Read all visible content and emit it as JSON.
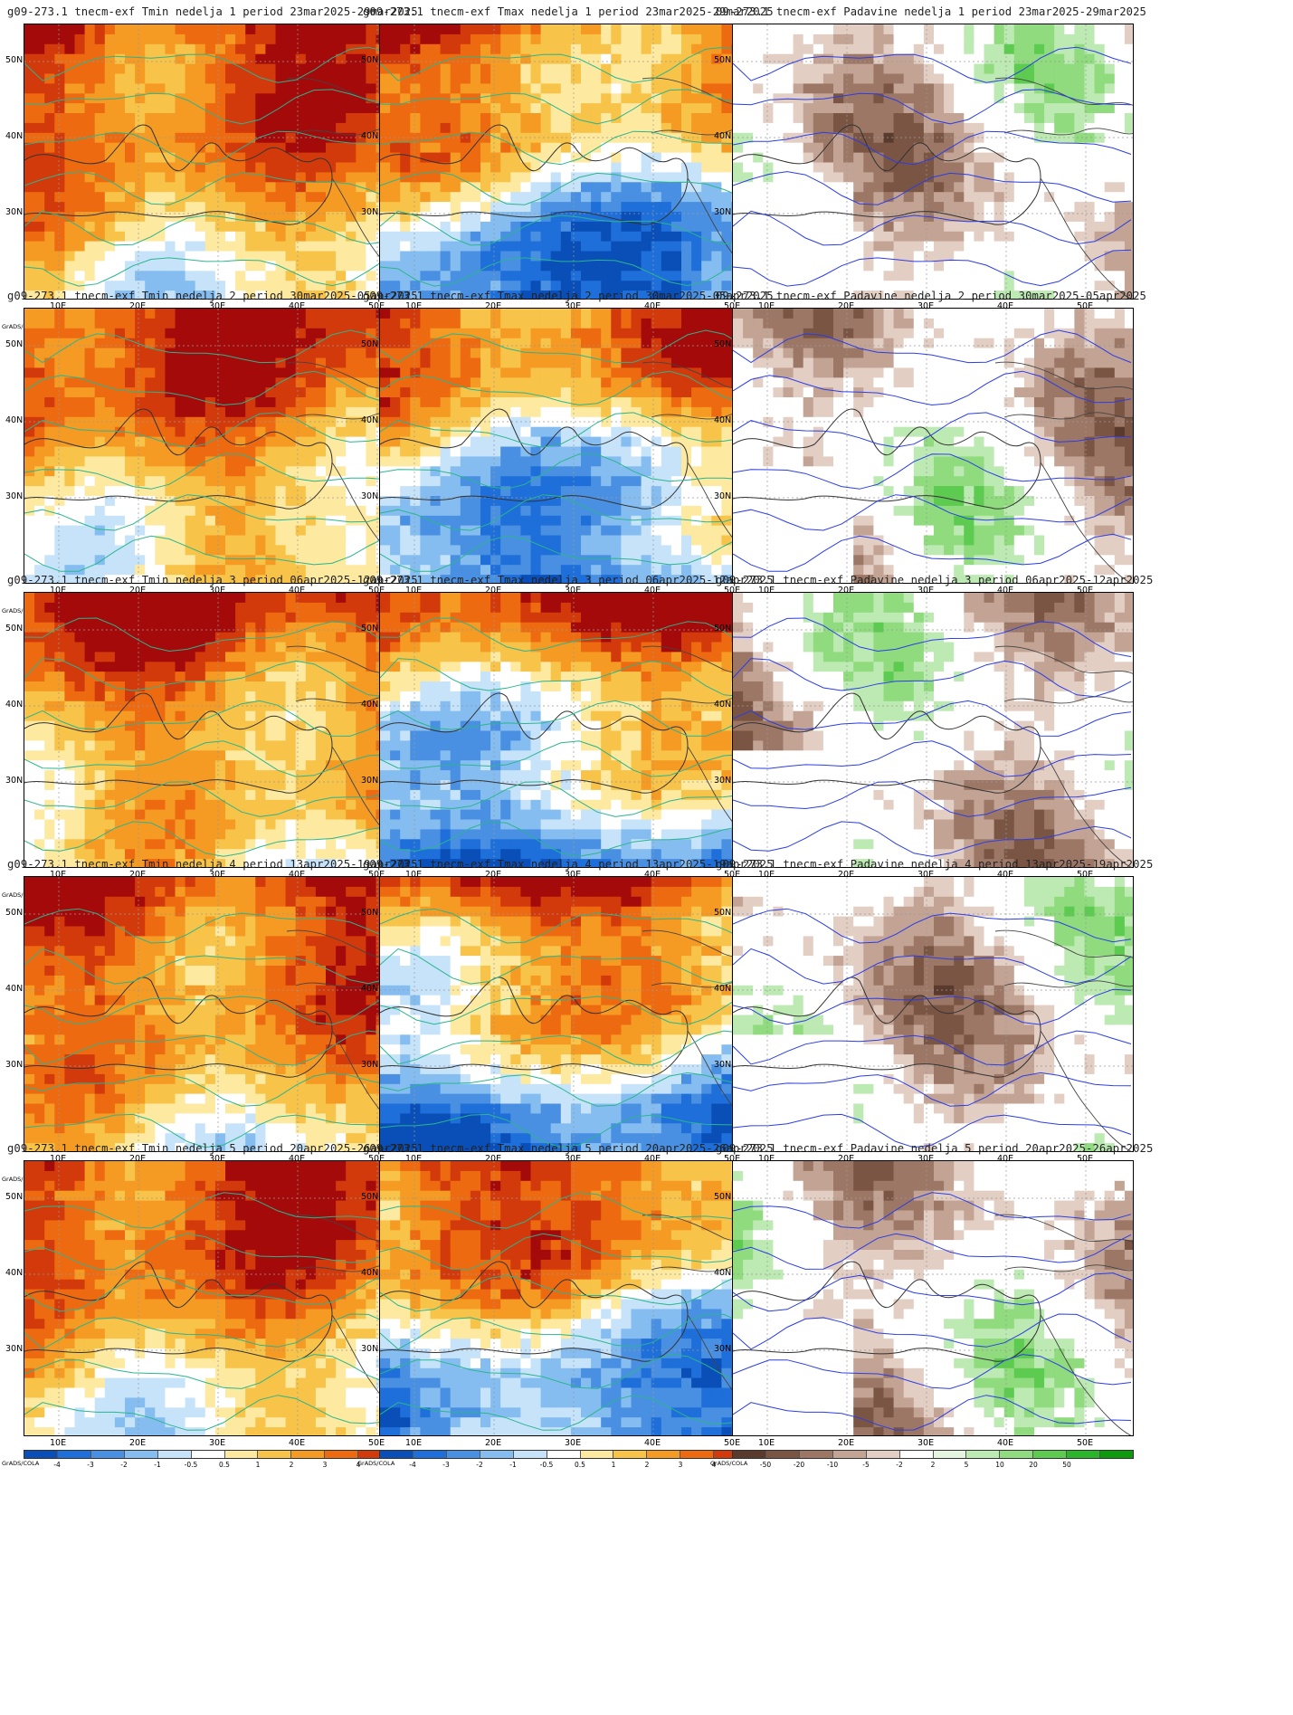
{
  "panels": [
    {
      "title": "g09-273.1  tnecm-exf  Tmin  nedelja  1  period  23mar2025-29mar2025",
      "var": "tmin",
      "week": 1
    },
    {
      "title": "g09-273.1  tnecm-exf  Tmax  nedelja  1  period  23mar2025-29mar2025",
      "var": "tmax",
      "week": 1
    },
    {
      "title": "09-273.1  tnecm-exf  Padavine  nedelja  1  period  23mar2025-29mar2025",
      "var": "prec",
      "week": 1
    },
    {
      "title": "g09-273.1  tnecm-exf  Tmin  nedelja  2  period  30mar2025-05apr2025",
      "var": "tmin",
      "week": 2
    },
    {
      "title": "g09-273.1  tnecm-exf  Tmax  nedelja  2  period  30mar2025-05apr2025",
      "var": "tmax",
      "week": 2
    },
    {
      "title": "09-273.1  tnecm-exf  Padavine  nedelja  2  period  30mar2025-05apr2025",
      "var": "prec",
      "week": 2
    },
    {
      "title": "g09-273.1  tnecm-exf  Tmin  nedelja  3  period  06apr2025-12apr2025",
      "var": "tmin",
      "week": 3
    },
    {
      "title": "g09-273.1  tnecm-exf  Tmax  nedelja  3  period  06apr2025-12apr2025",
      "var": "tmax",
      "week": 3
    },
    {
      "title": "g09-273.1  tnecm-exf  Padavine  nedelja  3  period  06apr2025-12apr2025",
      "var": "prec",
      "week": 3
    },
    {
      "title": "g09-273.1  tnecm-exf  Tmin  nedelja  4  period  13apr2025-19apr2025",
      "var": "tmin",
      "week": 4
    },
    {
      "title": "g09-273.1  tnecm-exf  Tmax  nedelja  4  period  13apr2025-19apr2025",
      "var": "tmax",
      "week": 4
    },
    {
      "title": "g09-273.1  tnecm-exf  Padavine  nedelja  4  period  13apr2025-19apr2025",
      "var": "prec",
      "week": 4
    },
    {
      "title": "g09-273.1  tnecm-exf  Tmin  nedelja  5  period  20apr2025-26apr2025",
      "var": "tmin",
      "week": 5
    },
    {
      "title": "g09-273.1  tnecm-exf  Tmax  nedelja  5  period  20apr2025-26apr2025",
      "var": "tmax",
      "week": 5
    },
    {
      "title": "g09-273.1  tnecm-exf  Padavine  nedelja  5  period  20apr2025-26apr2025",
      "var": "prec",
      "week": 5
    }
  ],
  "lat_labels": [
    "50N",
    "40N",
    "30N"
  ],
  "lon_labels": [
    "10E",
    "20E",
    "30E",
    "40E",
    "50E"
  ],
  "credit": "GrADS/COLA",
  "temp_scale": {
    "labels": [
      "-4",
      "-3",
      "-2",
      "-1",
      "-0.5",
      "0.5",
      "1",
      "2",
      "3",
      "4"
    ],
    "colors": [
      "#0a4fb8",
      "#1e6fd9",
      "#4a90e2",
      "#86bdf0",
      "#c6e3fa",
      "#ffffff",
      "#fde9a0",
      "#f8c349",
      "#f59a23",
      "#ee6a10",
      "#d23a0c",
      "#a50a0a"
    ]
  },
  "prec_scale": {
    "labels": [
      "-50",
      "-20",
      "-10",
      "-5",
      "-2",
      "2",
      "5",
      "10",
      "20",
      "50"
    ],
    "colors": [
      "#5b3a2e",
      "#7a5544",
      "#9c7766",
      "#c2a394",
      "#e3cec4",
      "#ffffff",
      "#e4f6e0",
      "#bdeab3",
      "#8fdb7e",
      "#5ccb50",
      "#2ab52a",
      "#0d9a0d"
    ]
  },
  "contour_colors": {
    "temp": "#2ab58e",
    "prec": "#2b3de6"
  }
}
